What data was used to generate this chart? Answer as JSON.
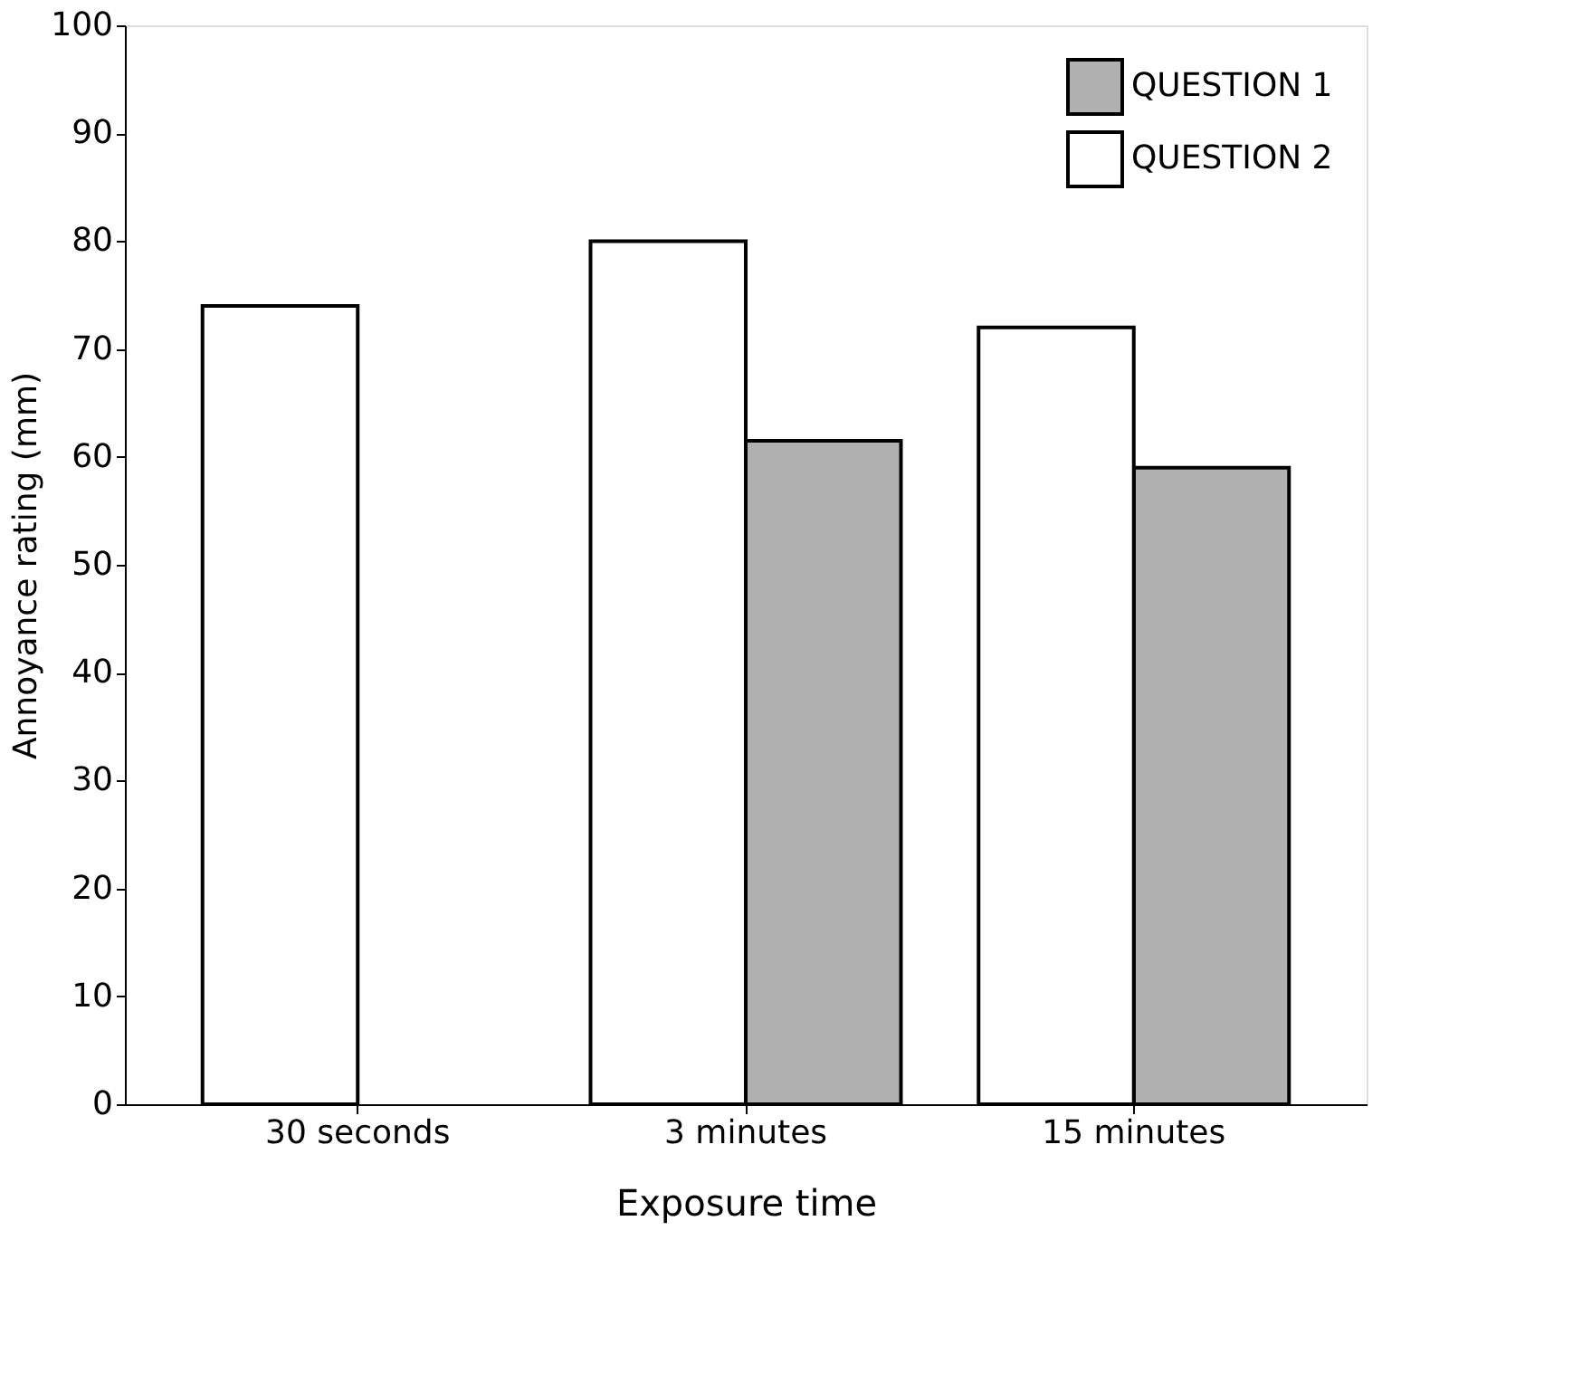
{
  "chart_data": {
    "type": "bar",
    "xlabel": "Exposure time",
    "ylabel": "Annoyance rating (mm)",
    "categories": [
      "30 seconds",
      "3 minutes",
      "15 minutes"
    ],
    "series": [
      {
        "name": "QUESTION 1",
        "color": "#b0b0b0",
        "values": [
          null,
          61.5,
          59
        ]
      },
      {
        "name": "QUESTION 2",
        "color": "#ffffff",
        "values": [
          74,
          80,
          72
        ]
      }
    ],
    "ylim": [
      0,
      100
    ],
    "yticks": [
      0,
      10,
      20,
      30,
      40,
      50,
      60,
      70,
      80,
      90,
      100
    ],
    "grid": false,
    "legend": "top right"
  }
}
